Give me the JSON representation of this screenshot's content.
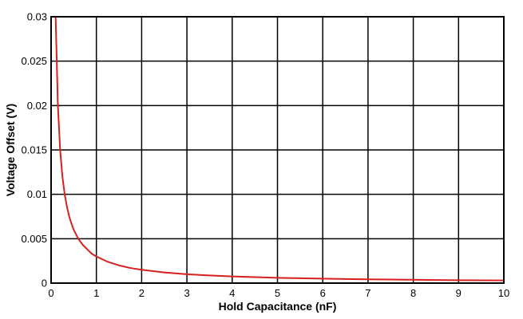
{
  "chart_data": {
    "type": "line",
    "title": "",
    "xlabel": "Hold Capacitance (nF)",
    "ylabel": "Voltage Offset (V)",
    "xlim": [
      0,
      10
    ],
    "ylim": [
      0,
      0.03
    ],
    "grid": true,
    "legend": "none",
    "x_ticks": [
      "0",
      "1",
      "2",
      "3",
      "4",
      "5",
      "6",
      "7",
      "8",
      "9",
      "10"
    ],
    "y_ticks": [
      "0",
      "0.005",
      "0.01",
      "0.015",
      "0.02",
      "0.025",
      "0.03"
    ],
    "series": [
      {
        "color": "#d92020",
        "x": [
          0.1,
          0.15,
          0.2,
          0.25,
          0.3,
          0.35,
          0.4,
          0.45,
          0.5,
          0.6,
          0.7,
          0.8,
          0.9,
          1,
          1.25,
          1.5,
          1.75,
          2,
          2.5,
          3,
          3.5,
          4,
          4.5,
          5,
          5.5,
          6,
          6.5,
          7,
          7.5,
          8,
          8.5,
          9,
          9.5,
          10
        ],
        "y": [
          0.03,
          0.02,
          0.015,
          0.012,
          0.01,
          0.0086,
          0.0075,
          0.0067,
          0.006,
          0.005,
          0.0043,
          0.0038,
          0.0033,
          0.003,
          0.0024,
          0.002,
          0.0017,
          0.0015,
          0.0012,
          0.001,
          0.00086,
          0.00075,
          0.00067,
          0.0006,
          0.00055,
          0.0005,
          0.00046,
          0.00043,
          0.0004,
          0.00038,
          0.00035,
          0.00033,
          0.00032,
          0.0003
        ]
      }
    ]
  }
}
